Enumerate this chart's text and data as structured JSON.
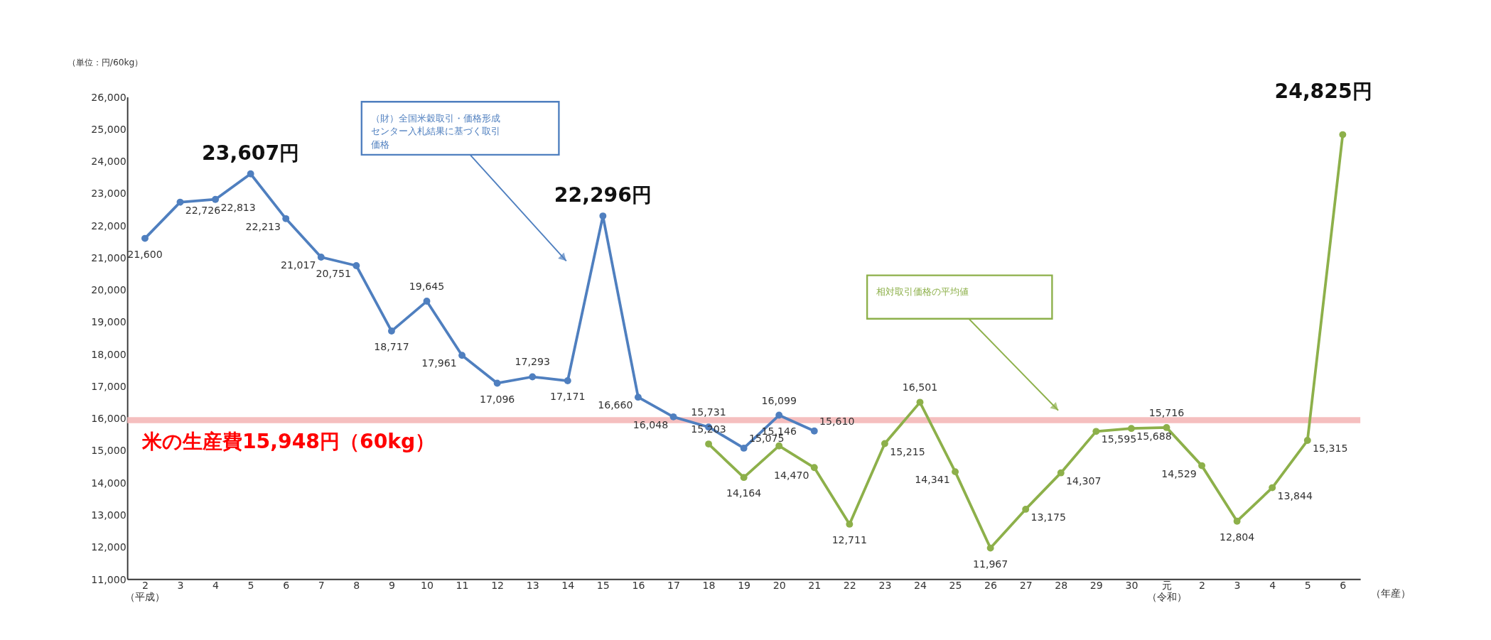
{
  "chart_data": {
    "type": "line",
    "ylabel": "（単位：円/60kg）",
    "xlabel": "（年産）",
    "categories": [
      "2（平成）",
      "3",
      "4",
      "5",
      "6",
      "7",
      "8",
      "9",
      "10",
      "11",
      "12",
      "13",
      "14",
      "15",
      "16",
      "17",
      "18",
      "19",
      "20",
      "21",
      "22",
      "23",
      "24",
      "25",
      "26",
      "27",
      "28",
      "29",
      "30",
      "元（令和）",
      "2",
      "3",
      "4",
      "5",
      "6"
    ],
    "series": [
      {
        "name": "（財）全国米穀取引・価格形成センター入札結果に基づく取引価格",
        "color": "#4f7fbf",
        "values": [
          21600,
          22726,
          22813,
          23607,
          22213,
          21017,
          20751,
          18717,
          19645,
          17961,
          17096,
          17293,
          17171,
          22296,
          16660,
          16048,
          15731,
          15075,
          16099,
          15610,
          null,
          null,
          null,
          null,
          null,
          null,
          null,
          null,
          null,
          null,
          null,
          null,
          null,
          null,
          null
        ],
        "value_labels": [
          "21,600",
          "22,726",
          "22,813",
          null,
          "22,213",
          "21,017",
          "20,751",
          "18,717",
          "19,645",
          "17,961",
          "17,096",
          "17,293",
          "17,171",
          null,
          "16,660",
          "16,048",
          "15,731",
          "15,075",
          "16,099",
          "15,610",
          null,
          null,
          null,
          null,
          null,
          null,
          null,
          null,
          null,
          null,
          null,
          null,
          null,
          null,
          null
        ]
      },
      {
        "name": "相対取引価格の平均値",
        "color": "#8db04a",
        "values": [
          null,
          null,
          null,
          null,
          null,
          null,
          null,
          null,
          null,
          null,
          null,
          null,
          null,
          null,
          null,
          null,
          15203,
          14164,
          15146,
          14470,
          12711,
          15215,
          16501,
          14341,
          11967,
          13175,
          14307,
          15595,
          15688,
          15716,
          14529,
          12804,
          13844,
          15315,
          24825
        ],
        "value_labels": [
          null,
          null,
          null,
          null,
          null,
          null,
          null,
          null,
          null,
          null,
          null,
          null,
          null,
          null,
          null,
          null,
          "15,203",
          "14,164",
          "15,146",
          "14,470",
          "12,711",
          "15,215",
          "16,501",
          "14,341",
          "11,967",
          "13,175",
          "14,307",
          "15,595",
          "15,688",
          "15,716",
          "14,529",
          "12,804",
          "13,844",
          "15,315",
          null
        ]
      }
    ],
    "ylim": [
      11000,
      26000
    ],
    "yticks": [
      {
        "value": 11000,
        "label": "11,000"
      },
      {
        "value": 12000,
        "label": "12,000"
      },
      {
        "value": 13000,
        "label": "13,000"
      },
      {
        "value": 14000,
        "label": "14,000"
      },
      {
        "value": 15000,
        "label": "15,000"
      },
      {
        "value": 16000,
        "label": "16,000"
      },
      {
        "value": 17000,
        "label": "17,000"
      },
      {
        "value": 18000,
        "label": "18,000"
      },
      {
        "value": 19000,
        "label": "19,000"
      },
      {
        "value": 20000,
        "label": "20,000"
      },
      {
        "value": 21000,
        "label": "21,000"
      },
      {
        "value": 22000,
        "label": "22,000"
      },
      {
        "value": 23000,
        "label": "23,000"
      },
      {
        "value": 24000,
        "label": "24,000"
      },
      {
        "value": 25000,
        "label": "25,000"
      },
      {
        "value": 26000,
        "label": "26,000"
      }
    ],
    "ref_lines": [
      {
        "axis": "y",
        "value": 15948,
        "label": "米の生産費15,948円（60kg）",
        "color": "#f4b8b8"
      }
    ],
    "annotations": [
      {
        "text": "23,607円",
        "x": "5",
        "y": 23607
      },
      {
        "text": "22,296円",
        "x": "15",
        "y": 22296
      },
      "24,825円"
    ],
    "marker": "circle",
    "line_style": "solid",
    "grid": false
  }
}
